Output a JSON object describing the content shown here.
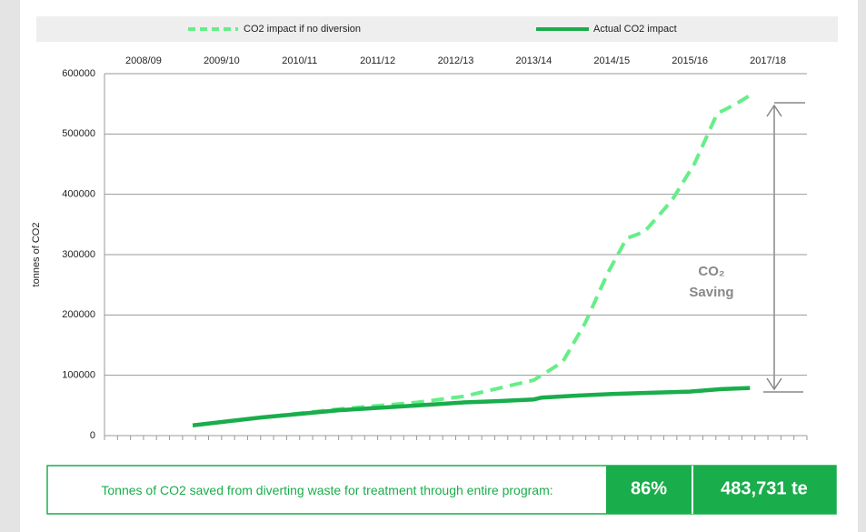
{
  "chart_data": {
    "type": "line",
    "y_label": "tonnes of CO2",
    "xlim": [
      0,
      9
    ],
    "xticks": [
      {
        "value": 0.5,
        "label": "2008/09"
      },
      {
        "value": 1.5,
        "label": "2009/10"
      },
      {
        "value": 2.5,
        "label": "2010/11"
      },
      {
        "value": 3.5,
        "label": "2011/12"
      },
      {
        "value": 4.5,
        "label": "2012/13"
      },
      {
        "value": 5.5,
        "label": "2013/14"
      },
      {
        "value": 6.5,
        "label": "2014/15"
      },
      {
        "value": 7.5,
        "label": "2015/16"
      },
      {
        "value": 8.5,
        "label": "2017/18"
      }
    ],
    "ylim": [
      0,
      600000
    ],
    "yticks": [
      0,
      100000,
      200000,
      300000,
      400000,
      500000,
      600000
    ],
    "grid": true,
    "series": [
      {
        "name": "CO2 impact if no diversion",
        "color": "#66ee88",
        "dashed": true,
        "x": [
          1.13,
          2,
          3,
          4,
          4.6,
          5,
          5.5,
          5.87,
          6.16,
          6.45,
          6.69,
          6.92,
          7.27,
          7.56,
          7.85,
          8.08,
          8.27
        ],
        "values": [
          17000,
          30000,
          44000,
          55000,
          65000,
          77000,
          92000,
          122000,
          187000,
          270000,
          327000,
          338000,
          390000,
          451000,
          534000,
          549000,
          564000
        ]
      },
      {
        "name": "Actual CO2 impact",
        "color": "#1aad4b",
        "dashed": false,
        "x": [
          1.13,
          2,
          3,
          4,
          4.6,
          5,
          5.5,
          5.6,
          6,
          6.5,
          7,
          7.5,
          7.9,
          8.27
        ],
        "values": [
          17000,
          30000,
          42000,
          50000,
          55000,
          57000,
          60000,
          63000,
          66000,
          69000,
          71000,
          73000,
          77000,
          79000
        ]
      }
    ],
    "annotation": [
      "CO₂",
      "Saving"
    ],
    "summary": {
      "text": "Tonnes of CO2 saved from diverting waste for treatment through entire program:",
      "percent": "86%",
      "total": "483,731 te"
    }
  }
}
